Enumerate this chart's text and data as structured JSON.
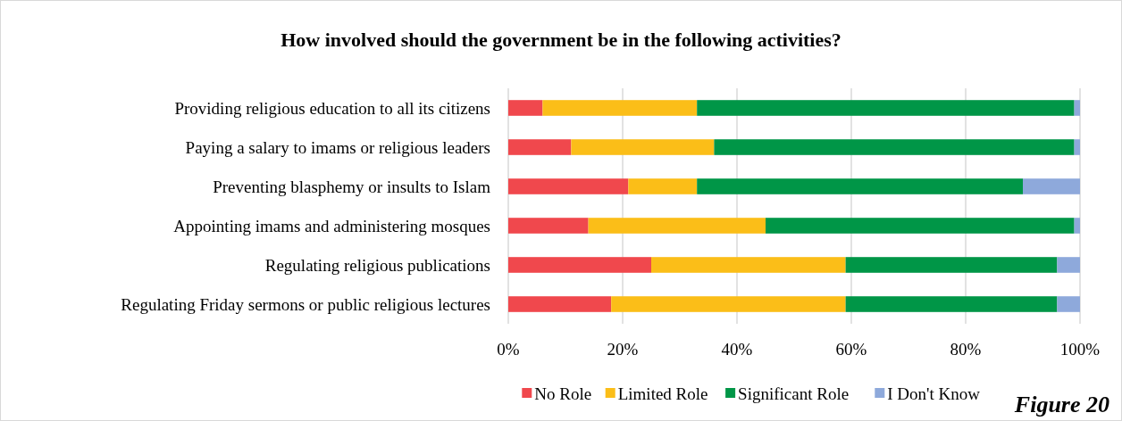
{
  "chart_data": {
    "type": "bar",
    "orientation": "horizontal",
    "stacked": true,
    "title": "How involved should the government be in the following activities?",
    "categories": [
      "Providing religious education to all its citizens",
      "Paying a salary to imams or religious leaders",
      "Preventing blasphemy or insults to Islam",
      "Appointing imams and administering mosques",
      "Regulating religious publications",
      "Regulating Friday sermons or public religious lectures"
    ],
    "series": [
      {
        "name": "No Role",
        "color": "#f0484d",
        "values": [
          6,
          11,
          21,
          14,
          25,
          18
        ]
      },
      {
        "name": "Limited Role",
        "color": "#fbbe18",
        "values": [
          27,
          25,
          12,
          31,
          34,
          41
        ]
      },
      {
        "name": "Significant Role",
        "color": "#009647",
        "values": [
          66,
          63,
          57,
          54,
          37,
          37
        ]
      },
      {
        "name": "I Don't Know",
        "color": "#8ea9db",
        "values": [
          1,
          1,
          10,
          1,
          4,
          4
        ]
      }
    ],
    "xlim": [
      0,
      100
    ],
    "xticks": [
      {
        "value": 0,
        "label": "0%"
      },
      {
        "value": 20,
        "label": "20%"
      },
      {
        "value": 40,
        "label": "40%"
      },
      {
        "value": 60,
        "label": "60%"
      },
      {
        "value": 80,
        "label": "80%"
      },
      {
        "value": 100,
        "label": "100%"
      }
    ],
    "grid": "x",
    "legend": "bottom",
    "annotations": [
      "Figure 20"
    ]
  }
}
